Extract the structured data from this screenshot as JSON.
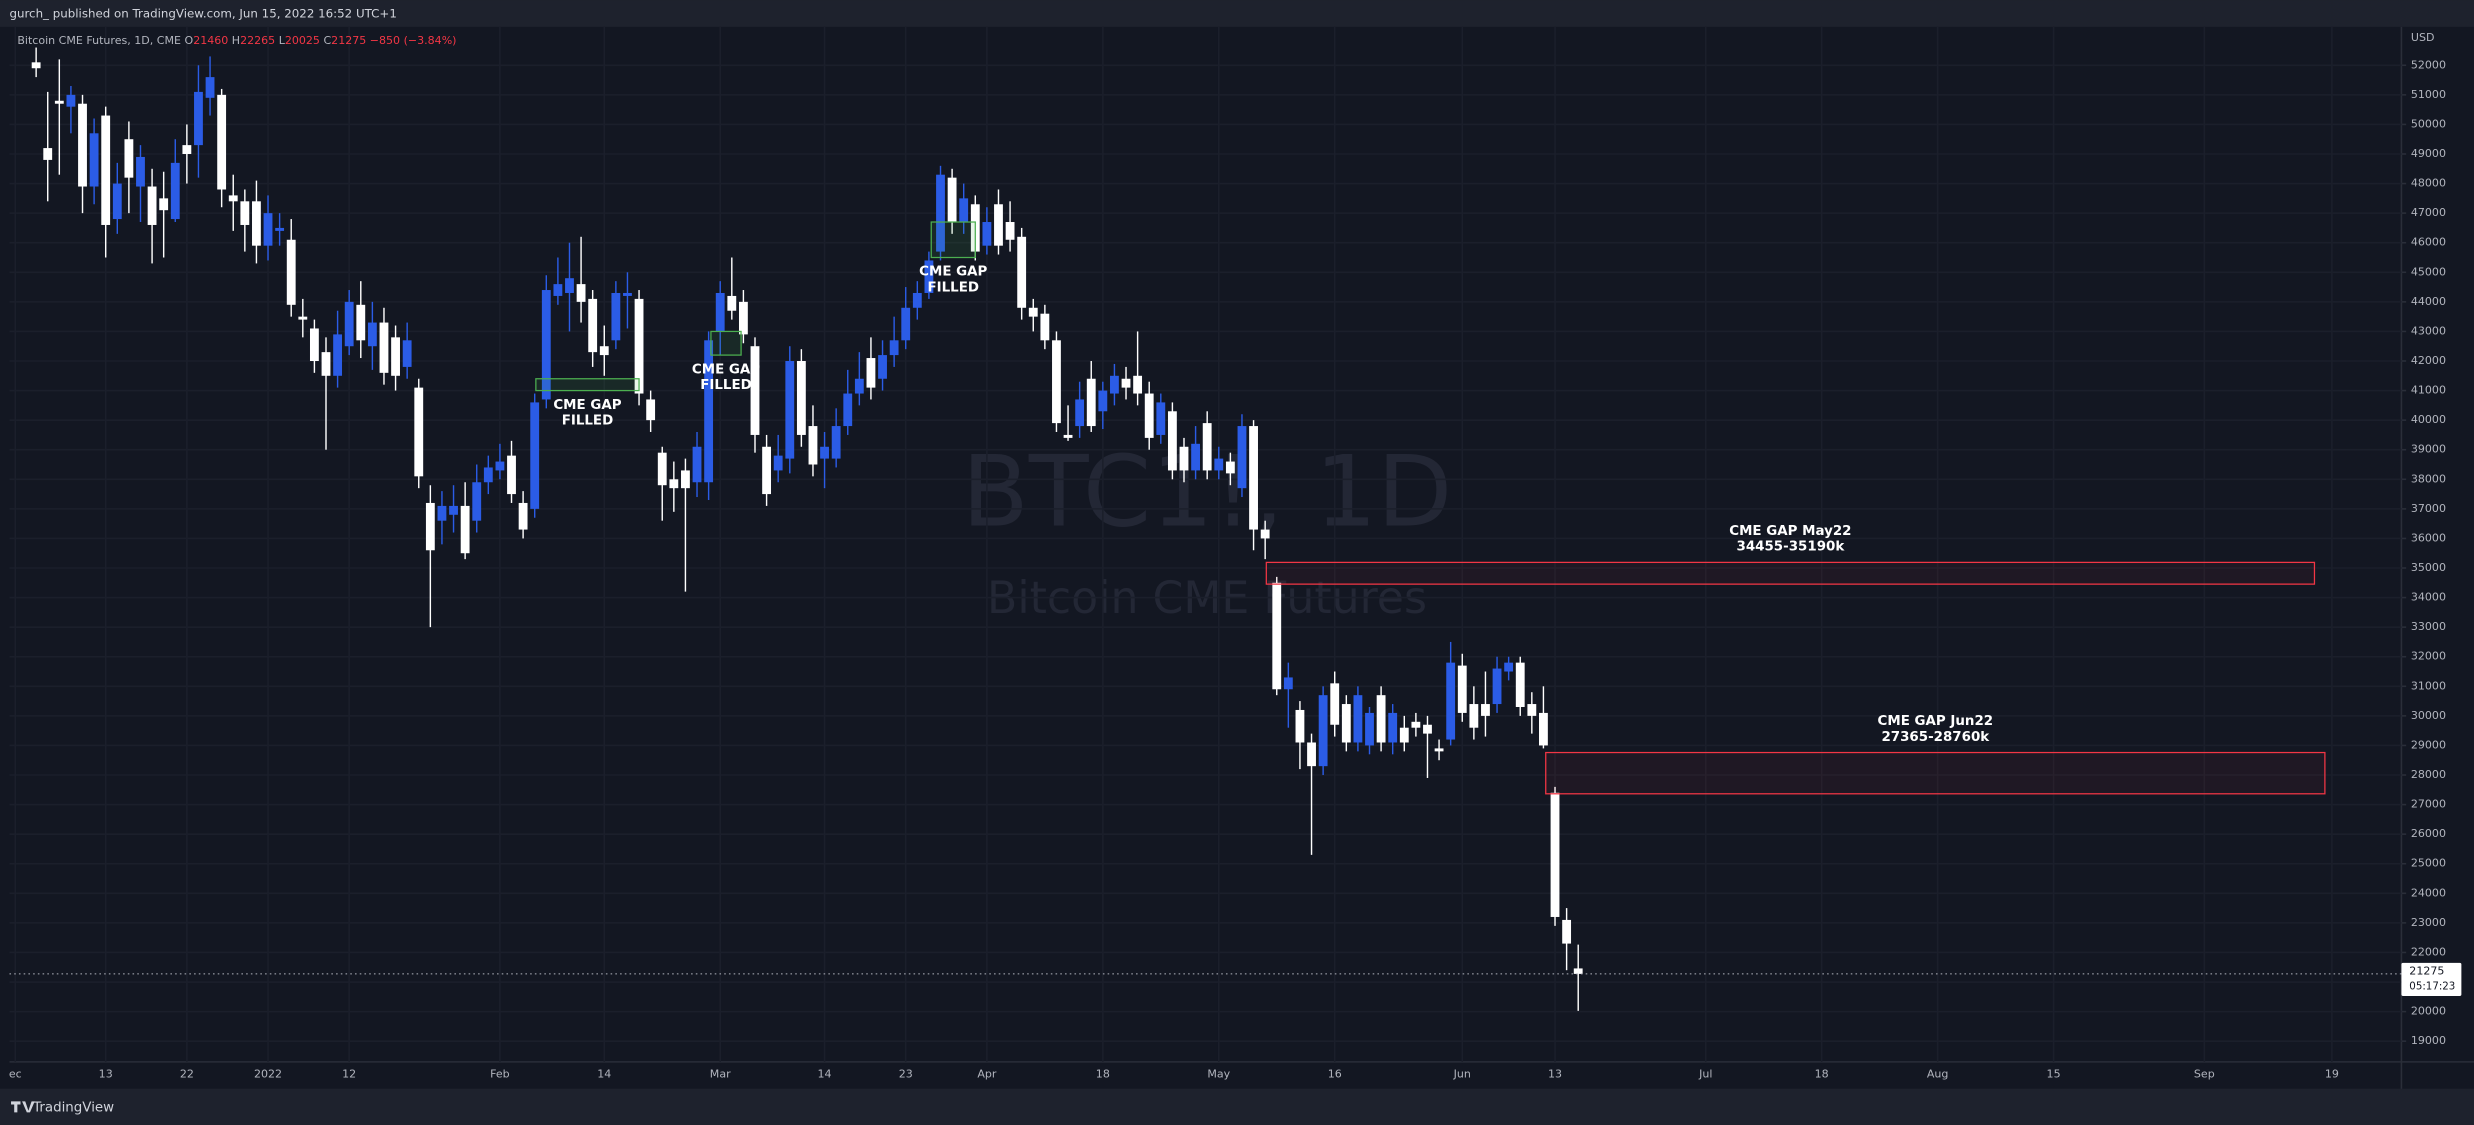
{
  "header": {
    "publisher": "gurch_  published on TradingView.com, Jun 15, 2022 16:52 UTC+1"
  },
  "footer": {
    "brand": "TradingView"
  },
  "chart_data": {
    "type": "candlestick",
    "symbol_watermark": "BTC1!, 1D",
    "name_watermark": "Bitcoin CME Futures",
    "legend": {
      "symbol": "Bitcoin CME Futures, 1D, CME",
      "open_label": "O",
      "high_label": "H",
      "low_label": "L",
      "close_label": "C",
      "change": "−850 (−3.84%)"
    },
    "y_unit": "USD",
    "countdown": "05:17:23",
    "up_color": "#2b5ce6",
    "down_color": "#ffffff",
    "grid": true,
    "xlim": [
      -8.3,
      198.0
    ],
    "ylim": [
      18300,
      53300
    ],
    "yticks": [
      19000,
      20000,
      21000,
      22000,
      23000,
      24000,
      25000,
      26000,
      27000,
      28000,
      29000,
      30000,
      31000,
      32000,
      33000,
      34000,
      35000,
      36000,
      37000,
      38000,
      39000,
      40000,
      41000,
      42000,
      43000,
      44000,
      45000,
      46000,
      47000,
      48000,
      49000,
      50000,
      51000,
      52000
    ],
    "xticks": [
      {
        "value": -7.8,
        "label": "ec"
      },
      {
        "value": 0,
        "label": "13"
      },
      {
        "value": 7,
        "label": "22"
      },
      {
        "value": 14,
        "label": "2022"
      },
      {
        "value": 21,
        "label": "12"
      },
      {
        "value": 34,
        "label": "Feb"
      },
      {
        "value": 43,
        "label": "14"
      },
      {
        "value": 53,
        "label": "Mar"
      },
      {
        "value": 62,
        "label": "14"
      },
      {
        "value": 69,
        "label": "23"
      },
      {
        "value": 76,
        "label": "Apr"
      },
      {
        "value": 86,
        "label": "18"
      },
      {
        "value": 96,
        "label": "May"
      },
      {
        "value": 106,
        "label": "16"
      },
      {
        "value": 117,
        "label": "Jun"
      },
      {
        "value": 125,
        "label": "13"
      },
      {
        "value": 138,
        "label": "Jul"
      },
      {
        "value": 148,
        "label": "18"
      },
      {
        "value": 158,
        "label": "Aug"
      },
      {
        "value": 168,
        "label": "15"
      },
      {
        "value": 181,
        "label": "Sep"
      },
      {
        "value": 192,
        "label": "19"
      }
    ],
    "x": [
      -6,
      -5,
      -4,
      -3,
      -2,
      -1,
      0,
      1,
      2,
      3,
      4,
      5,
      6,
      7,
      8,
      9,
      10,
      11,
      12,
      13,
      14,
      15,
      16,
      17,
      18,
      19,
      20,
      21,
      22,
      23,
      24,
      25,
      26,
      27,
      28,
      29,
      30,
      31,
      32,
      33,
      34,
      35,
      36,
      37,
      38,
      39,
      40,
      41,
      42,
      43,
      44,
      45,
      46,
      47,
      48,
      49,
      50,
      51,
      52,
      53,
      54,
      55,
      56,
      57,
      58,
      59,
      60,
      61,
      62,
      63,
      64,
      65,
      66,
      67,
      68,
      69,
      70,
      71,
      72,
      73,
      74,
      75,
      76,
      77,
      78,
      79,
      80,
      81,
      82,
      83,
      84,
      85,
      86,
      87,
      88,
      89,
      90,
      91,
      92,
      93,
      94,
      95,
      96,
      97,
      98,
      99,
      100,
      101,
      102,
      103,
      104,
      105,
      106,
      107,
      108,
      109,
      110,
      111,
      112,
      113,
      114,
      115,
      116,
      117,
      118,
      119,
      120,
      121,
      122,
      123,
      124,
      125,
      126,
      127
    ],
    "open": [
      52100,
      49200,
      50800,
      50600,
      50700,
      47900,
      50300,
      46800,
      49500,
      47900,
      47900,
      47500,
      46800,
      49300,
      49300,
      50900,
      51000,
      47600,
      47400,
      47400,
      45900,
      46400,
      46100,
      43500,
      43100,
      42300,
      41500,
      42500,
      43900,
      42500,
      43300,
      42800,
      41800,
      41100,
      37200,
      36600,
      36800,
      37100,
      36600,
      37900,
      38300,
      38800,
      37200,
      37000,
      40700,
      44200,
      44300,
      44600,
      44100,
      42500,
      42700,
      44200,
      44100,
      40700,
      38900,
      38000,
      38300,
      37900,
      37900,
      43000,
      44200,
      44000,
      42500,
      39100,
      38300,
      38700,
      42000,
      39800,
      38700,
      38700,
      39800,
      40900,
      42100,
      41400,
      42200,
      42700,
      43800,
      44300,
      45700,
      48200,
      46700,
      47300,
      45900,
      47300,
      46700,
      46200,
      43800,
      43600,
      42700,
      39500,
      39800,
      41400,
      40300,
      40900,
      41400,
      41500,
      40900,
      39500,
      40300,
      39100,
      38300,
      39900,
      38300,
      38600,
      37700,
      39800,
      36300,
      34500,
      30900,
      30200,
      29100,
      28300,
      31100,
      30400,
      29100,
      29000,
      30700,
      29100,
      29600,
      29800,
      29700,
      28900,
      29200,
      31700,
      30400,
      30400,
      30400,
      31500,
      31800,
      30400,
      30100,
      27400,
      23100,
      21460
    ],
    "high": [
      52600,
      51100,
      52200,
      51300,
      51000,
      50200,
      50600,
      48700,
      50100,
      49300,
      48500,
      48400,
      49500,
      50000,
      52000,
      52300,
      51200,
      48300,
      47800,
      48100,
      47600,
      47000,
      46800,
      44100,
      43400,
      42800,
      43700,
      44400,
      44700,
      44000,
      43800,
      43200,
      43300,
      41400,
      37800,
      37600,
      37800,
      37900,
      38500,
      38800,
      39200,
      39300,
      37600,
      40900,
      44900,
      45500,
      46000,
      46200,
      44400,
      43200,
      44700,
      45000,
      44400,
      41000,
      39100,
      38600,
      38700,
      39600,
      43000,
      44700,
      45500,
      44400,
      42800,
      39500,
      39500,
      42500,
      42400,
      40500,
      39600,
      40400,
      41700,
      42300,
      42800,
      42700,
      43500,
      44500,
      44700,
      45700,
      48600,
      48500,
      48000,
      47600,
      47200,
      47800,
      47400,
      46500,
      44100,
      43900,
      43000,
      40500,
      41300,
      42000,
      41300,
      41900,
      41800,
      43000,
      41300,
      40900,
      40600,
      39400,
      39800,
      40300,
      39100,
      38900,
      40200,
      40000,
      36600,
      34700,
      31800,
      30500,
      29400,
      31000,
      31500,
      30700,
      31000,
      30300,
      31000,
      30400,
      30000,
      30100,
      30000,
      29200,
      32500,
      32100,
      31000,
      31500,
      32000,
      32000,
      32000,
      30800,
      31000,
      27600,
      23500,
      22265
    ],
    "low": [
      51600,
      47400,
      48300,
      49700,
      47000,
      47300,
      45500,
      46300,
      47000,
      46700,
      45300,
      45500,
      46700,
      48000,
      48200,
      50300,
      47200,
      46400,
      45700,
      45300,
      45400,
      45900,
      43500,
      42800,
      41600,
      39000,
      41100,
      42200,
      42100,
      41700,
      41200,
      41000,
      41400,
      37700,
      33000,
      35800,
      36200,
      35300,
      36200,
      37500,
      38000,
      37200,
      36000,
      36700,
      40400,
      43900,
      43000,
      43300,
      41800,
      41500,
      42400,
      43100,
      40500,
      39600,
      36600,
      36900,
      34200,
      37400,
      37300,
      42200,
      43400,
      42600,
      38900,
      37100,
      37900,
      38200,
      39100,
      38100,
      37700,
      38400,
      39500,
      40500,
      40700,
      41000,
      41800,
      42400,
      43400,
      44100,
      45400,
      46300,
      46300,
      45400,
      45600,
      45600,
      45700,
      43400,
      43000,
      42400,
      39600,
      39300,
      39400,
      39600,
      39700,
      40500,
      40700,
      40500,
      39000,
      39200,
      38000,
      37900,
      38000,
      38000,
      38000,
      37800,
      37400,
      35600,
      35300,
      30700,
      29600,
      28200,
      25300,
      28000,
      29300,
      28800,
      28800,
      28700,
      28800,
      28700,
      28800,
      29300,
      27900,
      28500,
      29000,
      29800,
      29200,
      29300,
      30100,
      31200,
      30000,
      29400,
      28900,
      22900,
      21400,
      20025
    ],
    "close": [
      51900,
      48800,
      50700,
      51000,
      47900,
      49700,
      46600,
      48000,
      48200,
      48900,
      46600,
      47100,
      48700,
      49000,
      51100,
      51600,
      47800,
      47400,
      46600,
      45900,
      47000,
      46500,
      43900,
      43400,
      42000,
      41500,
      42900,
      44000,
      42700,
      43300,
      41600,
      41500,
      42700,
      38100,
      35600,
      37100,
      37100,
      35500,
      37900,
      38400,
      38600,
      37500,
      36300,
      40600,
      44400,
      44600,
      44800,
      44000,
      42300,
      42200,
      44300,
      44300,
      40900,
      40000,
      37800,
      37700,
      37700,
      39100,
      42700,
      44300,
      43700,
      42900,
      39500,
      37500,
      38800,
      42000,
      39500,
      38500,
      39100,
      39800,
      40900,
      41400,
      41100,
      42200,
      42700,
      43800,
      44300,
      45400,
      48300,
      46700,
      47500,
      45700,
      46700,
      45900,
      46100,
      43800,
      43500,
      42700,
      39900,
      39400,
      40700,
      39800,
      41000,
      41500,
      41100,
      40900,
      39400,
      40600,
      38300,
      38300,
      39200,
      38300,
      38700,
      38200,
      39800,
      36300,
      36000,
      30900,
      31300,
      29100,
      28300,
      30700,
      29700,
      29100,
      30700,
      30100,
      29100,
      30100,
      29100,
      29600,
      29400,
      28800,
      31800,
      30100,
      29600,
      30000,
      31600,
      31800,
      30300,
      30000,
      29000,
      23200,
      22300,
      21275
    ],
    "zones": [
      {
        "title": "CME GAP",
        "subtitle": "FILLED",
        "from": 37.1,
        "to": 46,
        "low": 41000,
        "high": 41400,
        "color": "#4caf50",
        "label_position": "below"
      },
      {
        "title": "CME GAP",
        "subtitle": "FILLED",
        "from": 52.2,
        "to": 54.8,
        "low": 42200,
        "high": 43000,
        "color": "#4caf50",
        "label_position": "below"
      },
      {
        "title": "CME GAP",
        "subtitle": "FILLED",
        "from": 71.2,
        "to": 75,
        "low": 45500,
        "high": 46700,
        "color": "#4caf50",
        "label_position": "below"
      },
      {
        "title": "CME GAP May22",
        "subtitle": "34455-35190k",
        "from": 100.1,
        "to": 190.5,
        "low": 34455,
        "high": 35190,
        "color": "#f23645",
        "label_position": "above"
      },
      {
        "title": "CME GAP Jun22",
        "subtitle": "27365-28760k",
        "from": 124.2,
        "to": 191.4,
        "low": 27365,
        "high": 28760,
        "color": "#f23645",
        "label_position": "above"
      }
    ]
  }
}
